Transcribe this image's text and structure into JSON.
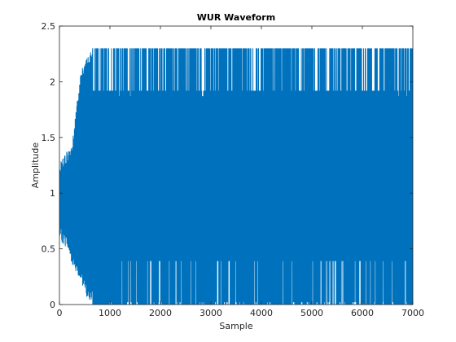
{
  "chart_data": {
    "type": "line",
    "title": "WUR Waveform",
    "xlabel": "Sample",
    "ylabel": "Amplitude",
    "xlim": [
      0,
      7000
    ],
    "ylim": [
      0,
      2.5
    ],
    "xticks": [
      0,
      1000,
      2000,
      3000,
      4000,
      5000,
      6000,
      7000
    ],
    "yticks": [
      0,
      0.5,
      1,
      1.5,
      2,
      2.5
    ],
    "xtick_labels": [
      "0",
      "1000",
      "2000",
      "3000",
      "4000",
      "5000",
      "6000",
      "7000"
    ],
    "ytick_labels": [
      "0",
      "0.5",
      "1",
      "1.5",
      "2",
      "2.5"
    ],
    "grid": false,
    "series_color": "#0072BD",
    "envelope": [
      {
        "x": 0,
        "low": 0.58,
        "high": 1.27
      },
      {
        "x": 150,
        "low": 0.5,
        "high": 1.38
      },
      {
        "x": 250,
        "low": 0.35,
        "high": 1.44
      },
      {
        "x": 350,
        "low": 0.28,
        "high": 1.85
      },
      {
        "x": 450,
        "low": 0.15,
        "high": 2.15
      },
      {
        "x": 550,
        "low": 0.05,
        "high": 2.23
      },
      {
        "x": 650,
        "low": 0.0,
        "high": 2.3
      },
      {
        "x": 7000,
        "low": 0.0,
        "high": 2.3
      }
    ],
    "levels": {
      "peak": 2.3,
      "upper": 1.92,
      "lower": 0.39,
      "floor": 0.0
    }
  }
}
